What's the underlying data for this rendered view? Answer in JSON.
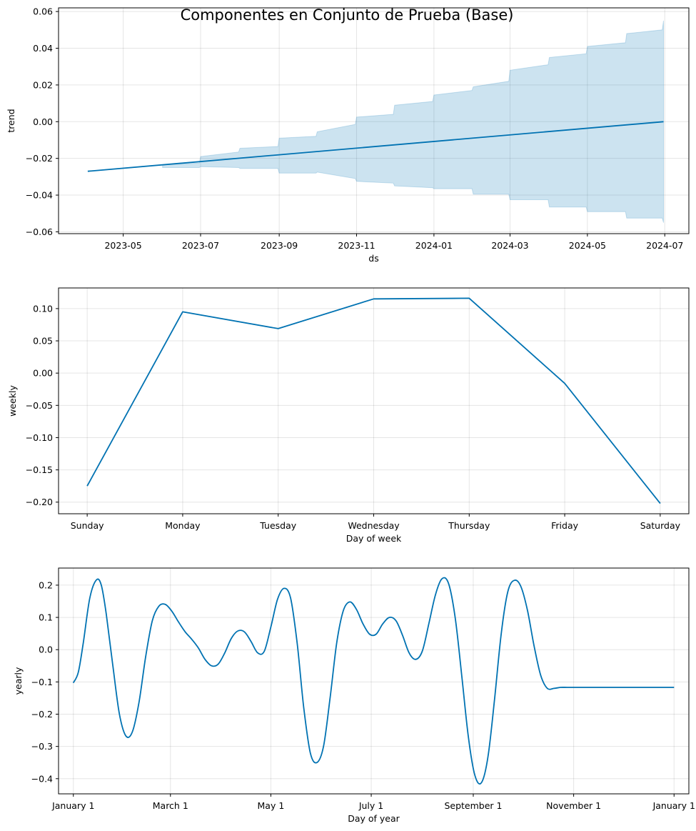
{
  "figure": {
    "title": "Componentes en Conjunto de Prueba (Base)"
  },
  "chart_data": [
    {
      "type": "area",
      "name_ref": "trend",
      "ylabel": "trend",
      "xlabel": "ds",
      "x_axis": "date",
      "xlim": [
        "2023-03-11",
        "2024-07-20"
      ],
      "ylim": [
        -0.061,
        0.062
      ],
      "x_ticks": [
        "2023-05-01",
        "2023-07-01",
        "2023-09-01",
        "2023-11-01",
        "2024-01-01",
        "2024-03-01",
        "2024-05-01",
        "2024-07-01"
      ],
      "x_tick_labels": [
        "2023-05",
        "2023-07",
        "2023-09",
        "2023-11",
        "2024-01",
        "2024-03",
        "2024-05",
        "2024-07"
      ],
      "y_ticks": [
        -0.06,
        -0.04,
        -0.02,
        0.0,
        0.02,
        0.04,
        0.06
      ],
      "y_tick_labels": [
        "−0.06",
        "−0.04",
        "−0.02",
        "0.00",
        "0.02",
        "0.04",
        "0.06"
      ],
      "grid": true,
      "line": {
        "x": [
          "2023-04-03",
          "2024-06-30"
        ],
        "y": [
          -0.027,
          0.0
        ]
      },
      "band": {
        "x": [
          "2023-06-01",
          "2023-06-30",
          "2023-07-01",
          "2023-07-31",
          "2023-08-01",
          "2023-08-31",
          "2023-09-01",
          "2023-09-30",
          "2023-10-01",
          "2023-10-31",
          "2023-11-01",
          "2023-11-30",
          "2023-12-01",
          "2023-12-31",
          "2024-01-01",
          "2024-01-31",
          "2024-02-01",
          "2024-02-29",
          "2024-03-01",
          "2024-03-31",
          "2024-04-01",
          "2024-04-30",
          "2024-05-01",
          "2024-05-31",
          "2024-06-01",
          "2024-06-29",
          "2024-06-30"
        ],
        "upper": [
          -0.0235,
          -0.0225,
          -0.019,
          -0.0165,
          -0.0145,
          -0.0135,
          -0.009,
          -0.008,
          -0.0055,
          -0.0015,
          0.0025,
          0.004,
          0.009,
          0.011,
          0.0145,
          0.017,
          0.019,
          0.022,
          0.028,
          0.031,
          0.035,
          0.037,
          0.041,
          0.043,
          0.048,
          0.05,
          0.055
        ],
        "lower": [
          -0.025,
          -0.025,
          -0.0245,
          -0.025,
          -0.0255,
          -0.0255,
          -0.028,
          -0.028,
          -0.0275,
          -0.031,
          -0.0325,
          -0.0335,
          -0.035,
          -0.036,
          -0.0365,
          -0.0365,
          -0.0395,
          -0.0395,
          -0.0425,
          -0.0425,
          -0.0465,
          -0.0465,
          -0.049,
          -0.049,
          -0.0525,
          -0.0525,
          -0.055
        ]
      }
    },
    {
      "type": "line",
      "name_ref": "weekly",
      "ylabel": "weekly",
      "xlabel": "Day of week",
      "categories": [
        "Sunday",
        "Monday",
        "Tuesday",
        "Wednesday",
        "Thursday",
        "Friday",
        "Saturday"
      ],
      "ylim": [
        -0.218,
        0.132
      ],
      "y_ticks": [
        -0.2,
        -0.15,
        -0.1,
        -0.05,
        0.0,
        0.05,
        0.1
      ],
      "y_tick_labels": [
        "−0.20",
        "−0.15",
        "−0.10",
        "−0.05",
        "0.00",
        "0.05",
        "0.10"
      ],
      "grid": true,
      "values": [
        -0.175,
        0.095,
        0.069,
        0.115,
        0.116,
        -0.016,
        -0.202
      ]
    },
    {
      "type": "line",
      "name_ref": "yearly",
      "ylabel": "yearly",
      "xlabel": "Day of year",
      "x_axis": "day_of_year",
      "xlim": [
        -9,
        374
      ],
      "ylim": [
        -0.447,
        0.253
      ],
      "x_ticks": [
        0,
        59,
        120,
        181,
        243,
        304,
        365
      ],
      "x_tick_labels": [
        "January 1",
        "March 1",
        "May 1",
        "July 1",
        "September 1",
        "November 1",
        "January 1"
      ],
      "y_ticks": [
        -0.4,
        -0.3,
        -0.2,
        -0.1,
        0.0,
        0.1,
        0.2
      ],
      "y_tick_labels": [
        "−0.4",
        "−0.3",
        "−0.2",
        "−0.1",
        "0.0",
        "0.1",
        "0.2"
      ],
      "grid": true,
      "x": [
        0,
        3,
        6,
        10,
        14,
        17,
        20,
        24,
        28,
        32,
        36,
        40,
        44,
        48,
        52,
        56,
        60,
        64,
        68,
        72,
        76,
        80,
        84,
        88,
        92,
        96,
        100,
        104,
        108,
        112,
        116,
        120,
        124,
        128,
        132,
        136,
        140,
        144,
        148,
        152,
        156,
        160,
        164,
        168,
        172,
        176,
        180,
        184,
        188,
        192,
        196,
        200,
        204,
        208,
        212,
        216,
        220,
        224,
        228,
        232,
        236,
        240,
        244,
        248,
        252,
        256,
        260,
        264,
        268,
        272,
        276,
        280,
        284,
        288,
        292,
        296,
        300,
        304,
        308,
        312,
        316,
        320,
        324,
        328,
        332,
        336,
        340,
        344,
        348,
        352,
        356,
        360,
        364,
        365
      ],
      "y": [
        -0.103,
        -0.07,
        0.02,
        0.16,
        0.216,
        0.2,
        0.11,
        -0.05,
        -0.2,
        -0.268,
        -0.253,
        -0.16,
        -0.02,
        0.09,
        0.135,
        0.14,
        0.118,
        0.085,
        0.055,
        0.032,
        0.005,
        -0.03,
        -0.05,
        -0.045,
        -0.01,
        0.035,
        0.058,
        0.055,
        0.025,
        -0.01,
        -0.005,
        0.07,
        0.155,
        0.19,
        0.16,
        0.02,
        -0.18,
        -0.32,
        -0.35,
        -0.3,
        -0.15,
        0.02,
        0.12,
        0.148,
        0.125,
        0.08,
        0.048,
        0.048,
        0.08,
        0.1,
        0.09,
        0.045,
        -0.01,
        -0.03,
        -0.005,
        0.08,
        0.17,
        0.22,
        0.205,
        0.1,
        -0.08,
        -0.27,
        -0.39,
        -0.412,
        -0.33,
        -0.15,
        0.05,
        0.18,
        0.215,
        0.195,
        0.12,
        0.01,
        -0.08,
        -0.12,
        -0.12,
        -0.117,
        -0.117,
        -0.117,
        -0.117,
        -0.117,
        -0.117,
        -0.117,
        -0.117,
        -0.117,
        -0.117,
        -0.117,
        -0.117,
        -0.117,
        -0.117,
        -0.117,
        -0.117,
        -0.117,
        -0.117,
        -0.117
      ]
    }
  ]
}
